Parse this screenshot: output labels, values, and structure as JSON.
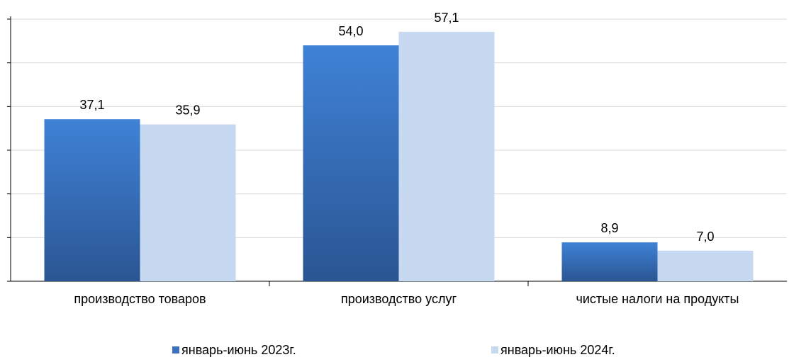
{
  "chart_data": {
    "type": "bar",
    "categories": [
      "производство товаров",
      "производство услуг",
      "чистые налоги на продукты"
    ],
    "series": [
      {
        "name": "январь-июнь 2023г.",
        "values": [
          37.1,
          54.0,
          8.9
        ],
        "labels": [
          "37,1",
          "54,0",
          "8,9"
        ],
        "color": "#3a72c0"
      },
      {
        "name": "январь-июнь 2024г.",
        "values": [
          35.9,
          57.1,
          7.0
        ],
        "labels": [
          "35,9",
          "57,1",
          "7,0"
        ],
        "color": "#c6d9f0"
      }
    ],
    "ylim": [
      0,
      60
    ],
    "ytick_step": 10,
    "y_tick_labels_visible": false,
    "grid": true,
    "legend_position": "bottom",
    "title": "",
    "xlabel": "",
    "ylabel": ""
  }
}
